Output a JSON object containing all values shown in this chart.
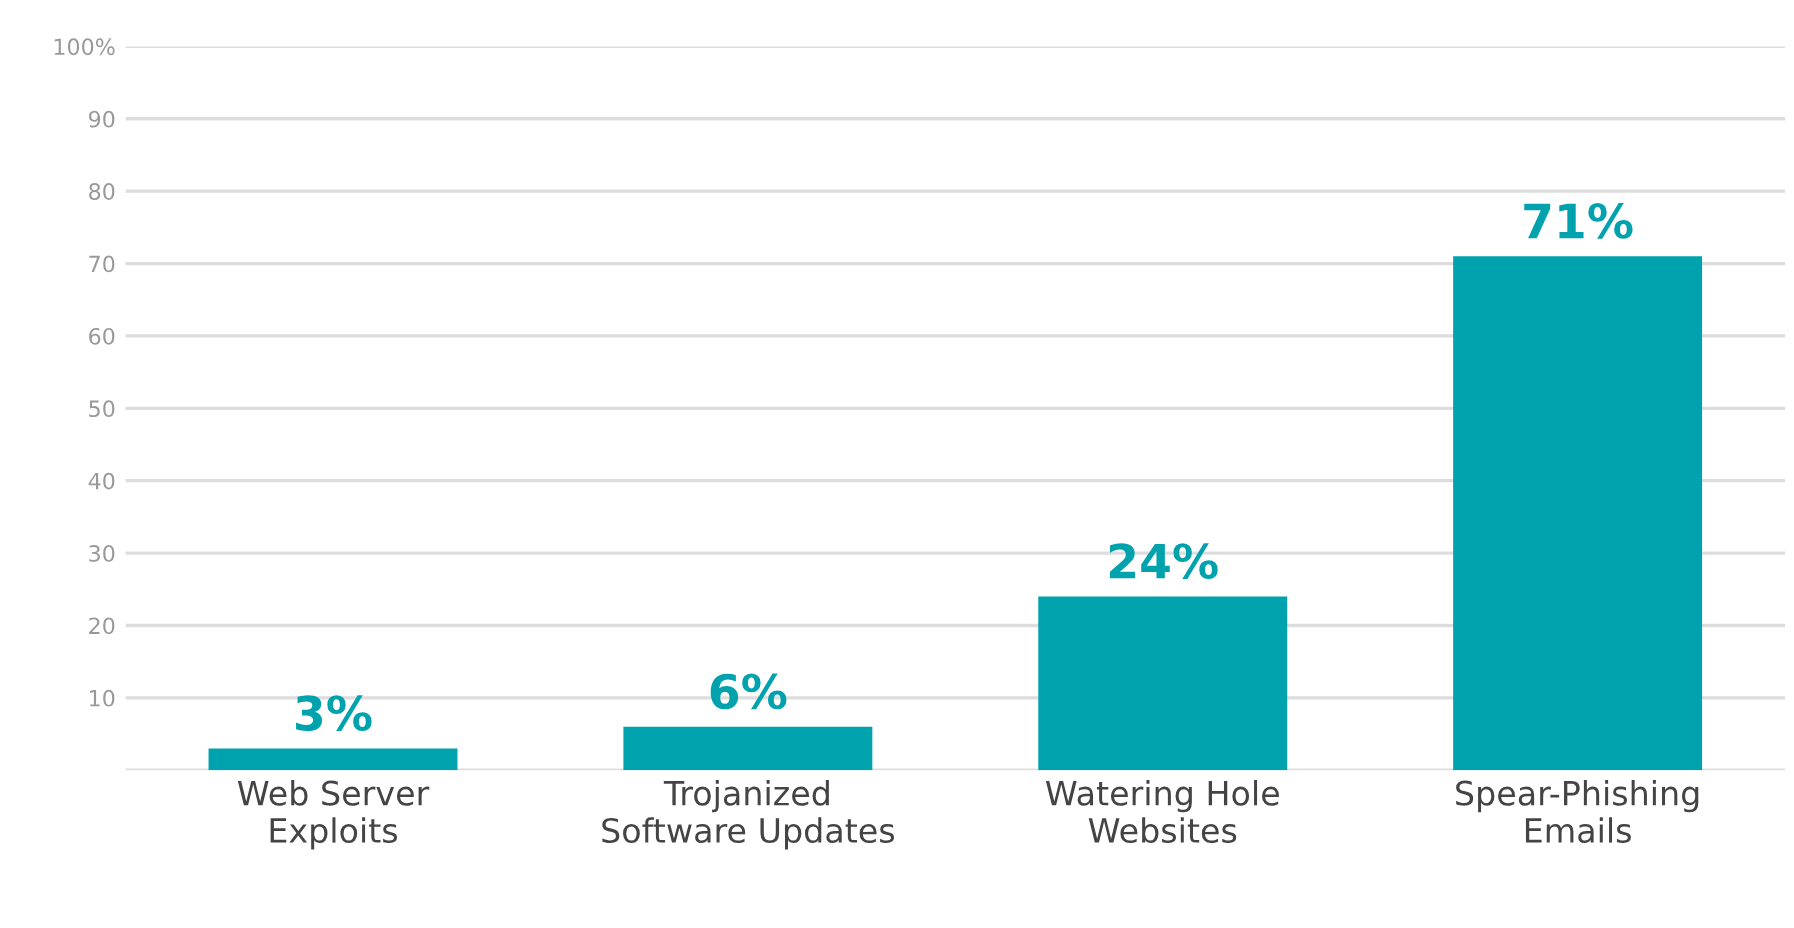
{
  "chart_data": {
    "type": "bar",
    "categories": [
      "Web Server\nExploits",
      "Trojanized\nSoftware Updates",
      "Watering Hole\nWebsites",
      "Spear-Phishing\nEmails"
    ],
    "values": [
      3,
      6,
      24,
      71
    ],
    "color": "#00a3ad",
    "value_labels": [
      "3%",
      "6%",
      "24%",
      "71%"
    ],
    "ylim": [
      0,
      100
    ],
    "yticks": [
      {
        "value": 0,
        "label": null
      },
      10,
      20,
      30,
      40,
      50,
      60,
      70,
      80,
      90,
      {
        "value": 100,
        "label": "100%"
      }
    ],
    "grid": "y"
  }
}
